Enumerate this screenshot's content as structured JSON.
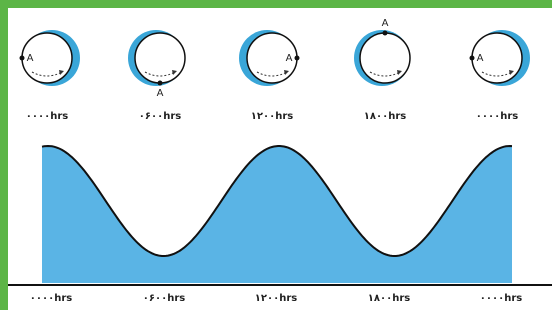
{
  "top_labels": [
    "۰۰۰۰hrs",
    "۰۶۰۰hrs",
    "۱۲۰۰hrs",
    "۱۸۰۰hrs",
    "۰۰۰۰hrs"
  ],
  "bottom_labels": [
    "۰۰۰۰hrs",
    "۰۶۰۰hrs",
    "۱۲۰۰hrs",
    "۱۸۰۰hrs",
    "۰۰۰۰hrs"
  ],
  "circles": [
    {
      "label": "A"
    },
    {
      "label": "A"
    },
    {
      "label": "A"
    },
    {
      "label": "A"
    },
    {
      "label": "A"
    }
  ]
}
